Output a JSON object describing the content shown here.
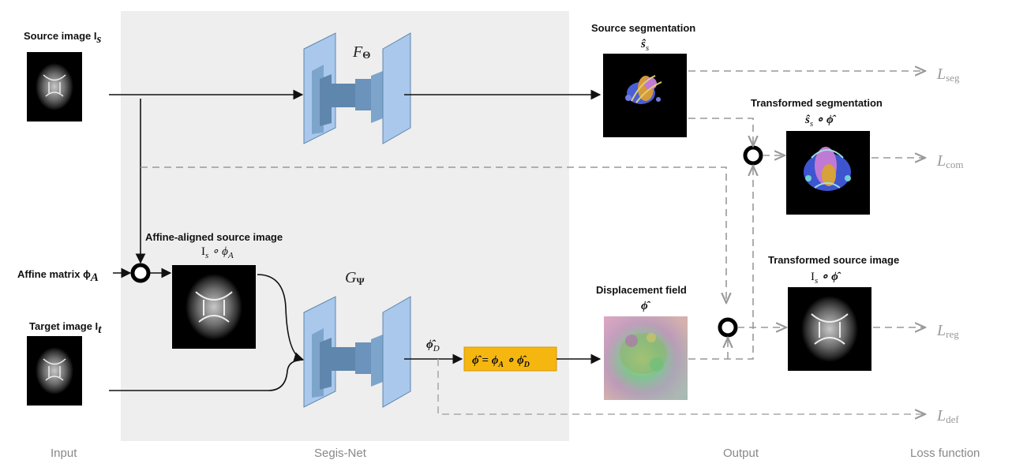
{
  "labels": {
    "source_image": "Source image I",
    "source_image_sub": "s",
    "affine_matrix": "Affine matrix ϕ",
    "affine_matrix_sub": "A",
    "target_image": "Target image I",
    "target_image_sub": "t",
    "affine_aligned_title": "Affine-aligned source image",
    "affine_aligned_formula": "I",
    "affine_aligned_formula_s": "s",
    "affine_aligned_formula_op": " ∘ ϕ",
    "affine_aligned_formula_a": "A",
    "source_segmentation_title": "Source segmentation",
    "source_segmentation_sym": "ŝ",
    "source_segmentation_sub": "s",
    "transformed_segmentation_title": "Transformed segmentation",
    "transformed_segmentation_formula": "ŝ",
    "transformed_segmentation_sub": "s",
    "transformed_segmentation_op": " ∘ ϕ̂",
    "transformed_source_title": "Transformed source image",
    "transformed_source_formula": "I",
    "transformed_source_sub": "s",
    "transformed_source_op": " ∘ ϕ̂",
    "displacement_title": "Displacement field",
    "displacement_sym": "ϕ̂",
    "phi_d": "ϕ̂",
    "phi_d_sub": "D",
    "net_f": "F",
    "net_f_sub": "Θ",
    "net_g": "G",
    "net_g_sub": "Ψ",
    "formula_box": "ϕ̂ = ϕ",
    "formula_box_a": "A",
    "formula_box_rest": " ∘ ϕ̂",
    "formula_box_d": "D"
  },
  "losses": {
    "seg": "seg",
    "com": "com",
    "reg": "reg",
    "def": "def",
    "symbol": "L"
  },
  "captions": {
    "input": "Input",
    "segis_net": "Segis-Net",
    "output": "Output",
    "loss_function": "Loss function"
  },
  "colors": {
    "segis_panel": "#eeeeee",
    "network_blue": "#a9c8ec",
    "network_dark": "#5f86ad",
    "formula_box": "#f5b60f"
  }
}
